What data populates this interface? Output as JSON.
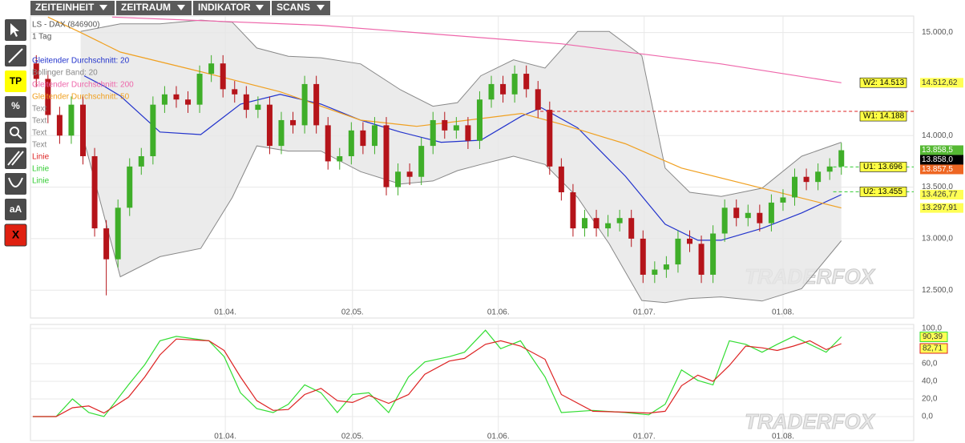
{
  "menu": [
    "ZEITEINHEIT",
    "ZEITRAUM",
    "INDIKATOR",
    "SCANS"
  ],
  "toolbar": [
    "TP",
    "%",
    "aA",
    "X"
  ],
  "watermark": "TRADERFOX",
  "chart_data": [
    {
      "type": "candlestick",
      "title": "LS - DAX (846900)",
      "subtitle": "1 Tag",
      "xlim": [
        -0.5,
        75.2
      ],
      "ylim": [
        12230,
        15160
      ],
      "yticks": [
        {
          "value": 12500,
          "label": "12.500,0"
        },
        {
          "value": 13000,
          "label": "13.000,0"
        },
        {
          "value": 13500,
          "label": "13.500,0"
        },
        {
          "value": 14000,
          "label": "14.000,0"
        },
        {
          "value": 15000,
          "label": "15.000,0"
        }
      ],
      "xticks": [
        {
          "value": 16.2,
          "label": "01.04."
        },
        {
          "value": 27.1,
          "label": "02.05."
        },
        {
          "value": 39.6,
          "label": "01.06."
        },
        {
          "value": 52.1,
          "label": "01.07."
        },
        {
          "value": 64,
          "label": "01.08."
        }
      ],
      "up_color": "#3fae29",
      "down_color": "#b5141a",
      "open": [
        14700,
        14550,
        14200,
        14000,
        14300,
        13800,
        13100,
        12800,
        13300,
        13700,
        13800,
        14300,
        14400,
        14350,
        14300,
        14600,
        14700,
        14450,
        14400,
        14250,
        14300,
        13900,
        14150,
        14100,
        14500,
        14100,
        13750,
        13800,
        14050,
        13900,
        14100,
        13500,
        13650,
        13600,
        13900,
        14150,
        14050,
        14100,
        13950,
        14350,
        14500,
        14400,
        14600,
        14450,
        14250,
        13700,
        13450,
        13100,
        13200,
        13100,
        13150,
        13200,
        13000,
        12650,
        12700,
        12750,
        13000,
        12950,
        12650,
        13050,
        13300,
        13200,
        13250,
        13150,
        13350,
        13400,
        13600,
        13550,
        13650,
        13700
      ],
      "high": [
        14780,
        14630,
        14280,
        14380,
        14380,
        13880,
        13180,
        13380,
        13780,
        13880,
        14380,
        14480,
        14480,
        14430,
        14680,
        14780,
        14780,
        14530,
        14480,
        14380,
        14380,
        14230,
        14230,
        14580,
        14580,
        14180,
        13880,
        14130,
        14130,
        14180,
        14180,
        13730,
        13730,
        13980,
        14230,
        14230,
        14180,
        14180,
        14430,
        14580,
        14580,
        14680,
        14680,
        14530,
        14330,
        13780,
        13530,
        13280,
        13280,
        13230,
        13280,
        13280,
        13080,
        12780,
        12830,
        13080,
        13080,
        13030,
        13130,
        13380,
        13380,
        13330,
        13330,
        13430,
        13480,
        13680,
        13680,
        13730,
        13780,
        13930
      ],
      "low": [
        14470,
        14120,
        13920,
        13920,
        13720,
        13020,
        12450,
        12720,
        13220,
        13620,
        13720,
        14220,
        14270,
        14220,
        14220,
        14520,
        14370,
        14320,
        14170,
        14170,
        13820,
        13820,
        14020,
        14020,
        14020,
        13670,
        13670,
        13720,
        13820,
        13820,
        13420,
        13420,
        13520,
        13520,
        13820,
        13970,
        13970,
        13870,
        13870,
        14270,
        14320,
        14320,
        14370,
        14170,
        13620,
        13370,
        13020,
        13020,
        13020,
        13020,
        13070,
        12920,
        12570,
        12570,
        12620,
        12670,
        12870,
        12570,
        12570,
        12970,
        13120,
        13120,
        13070,
        13070,
        13270,
        13320,
        13470,
        13470,
        13570,
        13620
      ],
      "close": [
        14550,
        14200,
        14000,
        14300,
        13800,
        13100,
        12800,
        13300,
        13700,
        13800,
        14300,
        14400,
        14350,
        14300,
        14600,
        14700,
        14450,
        14400,
        14250,
        14300,
        13900,
        14150,
        14100,
        14500,
        14100,
        13750,
        13800,
        14050,
        13900,
        14100,
        13500,
        13650,
        13600,
        13900,
        14150,
        14050,
        14100,
        13950,
        14350,
        14500,
        14400,
        14600,
        14450,
        14250,
        13700,
        13450,
        13100,
        13200,
        13100,
        13150,
        13200,
        13000,
        12650,
        12700,
        12750,
        13000,
        12950,
        12650,
        13050,
        13300,
        13200,
        13250,
        13150,
        13350,
        13400,
        13600,
        13550,
        13650,
        13700,
        13858
      ],
      "overlays": [
        {
          "name": "Gleitender Durchschnitt: 20",
          "color": "#2233cc",
          "x": [
            4.1,
            5.8,
            7.2,
            10.6,
            14.1,
            17.5,
            20.9,
            24.4,
            27.8,
            31.2,
            34.7,
            38.1,
            41.6,
            43.3,
            46.4,
            50.5,
            53.9,
            56.7,
            58.7,
            62.2,
            65.6,
            69
          ],
          "values": [
            14580,
            14480,
            14385,
            14035,
            14010,
            14305,
            14400,
            14305,
            14150,
            14035,
            13935,
            13955,
            14190,
            14270,
            14075,
            13605,
            13140,
            12985,
            12985,
            13100,
            13250,
            13426.77
          ]
        },
        {
          "name": "Bollinger Band: 20",
          "color": "#888888",
          "x": [
            3.8,
            7.2,
            10.6,
            14.1,
            16.8,
            18.9,
            21.6,
            24.4,
            27.8,
            31.2,
            34,
            36.1,
            38.1,
            40.9,
            43.6,
            46.4,
            49.1,
            51.9,
            53.9,
            56,
            58.7,
            62.2,
            65.6,
            69
          ],
          "upper": [
            15010,
            15085,
            15085,
            15120,
            15100,
            14850,
            14770,
            14755,
            14695,
            14445,
            14285,
            14320,
            14580,
            14735,
            14655,
            15010,
            15010,
            14775,
            13685,
            13450,
            13410,
            13490,
            13800,
            13935
          ],
          "lower": [
            14075,
            12630,
            12825,
            12905,
            13400,
            13900,
            13850,
            13850,
            13650,
            13530,
            13560,
            13660,
            13720,
            13800,
            13720,
            13400,
            12950,
            12400,
            12380,
            12420,
            12435,
            12395,
            12515,
            12980
          ]
        },
        {
          "name": "Gleitender Durchschnitt: 200",
          "color": "#ee66aa",
          "x": [
            6.5,
            24.4,
            45,
            58.7,
            69
          ],
          "values": [
            15150,
            15070,
            14890,
            14695,
            14512.62
          ]
        },
        {
          "name": "Gleitender Durchschnitt: 50",
          "color": "#f0a020",
          "x": [
            1,
            3.8,
            7.2,
            14.1,
            20.9,
            27.8,
            32.6,
            38.1,
            41.6,
            45,
            50.5,
            55.3,
            62.2,
            69
          ],
          "values": [
            15150,
            15000,
            14810,
            14620,
            14425,
            14150,
            14090,
            14165,
            14215,
            14110,
            13920,
            13685,
            13490,
            13297.91
          ]
        }
      ],
      "annotations": [
        "Text",
        "Text",
        "Text",
        "Text"
      ],
      "drawn_lines": [
        {
          "name": "Linie",
          "color": "#dd2222",
          "value": 14235,
          "x_start": 43.2
        },
        {
          "name": "Linie",
          "color": "#33cc33",
          "value": 13696,
          "x_start": 68.3
        },
        {
          "name": "Linie",
          "color": "#33cc33",
          "value": 13455,
          "x_start": 68.3
        }
      ],
      "levels": [
        {
          "value": 14513,
          "label": "W2: 14.513"
        },
        {
          "value": 14188,
          "label": "W1: 14.188"
        },
        {
          "value": 13696,
          "label": "U1: 13.696"
        },
        {
          "value": 13455,
          "label": "U2: 13.455"
        }
      ],
      "price_labels": [
        {
          "value": 14512.62,
          "label": "14.512,62",
          "color": "#ffff55",
          "text_color": "#333333"
        },
        {
          "value": 13858.5,
          "label": "13.858,5",
          "color": "#55b833",
          "text_color": "#ffffff"
        },
        {
          "value": 13858.0,
          "label": "13.858,0",
          "color": "#000000",
          "text_color": "#ffffff"
        },
        {
          "value": 13857.5,
          "label": "13.857,5",
          "color": "#ee6622",
          "text_color": "#ffffff"
        },
        {
          "value": 13426.77,
          "label": "13.426,77",
          "color": "#ffff55",
          "text_color": "#333333"
        },
        {
          "value": 13297.91,
          "label": "13.297,91",
          "color": "#ffff55",
          "text_color": "#333333"
        }
      ]
    },
    {
      "type": "line",
      "xlim": [
        -0.5,
        75.2
      ],
      "ylim": [
        -27.3,
        104.5
      ],
      "yticks": [
        {
          "value": 0,
          "label": "0,0"
        },
        {
          "value": 20,
          "label": "20,0"
        },
        {
          "value": 40,
          "label": "40,0"
        },
        {
          "value": 60,
          "label": "60,0"
        },
        {
          "value": 100,
          "label": "100,0"
        }
      ],
      "xticks": [
        {
          "value": 16.2,
          "label": "01.04."
        },
        {
          "value": 27.1,
          "label": "02.05."
        },
        {
          "value": 39.6,
          "label": "01.06."
        },
        {
          "value": 52.1,
          "label": "01.07."
        },
        {
          "value": 64,
          "label": "01.08."
        }
      ],
      "x": [
        -0.3,
        1.7,
        3.1,
        4.5,
        5.8,
        7.9,
        9.3,
        10.6,
        12,
        14.8,
        16.1,
        17.5,
        18.9,
        20.3,
        21.6,
        23,
        24.4,
        25.8,
        27.1,
        28.5,
        30.2,
        31.9,
        33.3,
        35.4,
        36.7,
        38.5,
        39.8,
        41.5,
        43.6,
        45,
        47.7,
        50.5,
        52.5,
        53.9,
        55.3,
        56.7,
        58,
        59.4,
        60.8,
        62.2,
        63.5,
        64.9,
        66.3,
        67.7,
        69
      ],
      "series": [
        {
          "color": "#33dd33",
          "values": [
            0,
            0,
            20,
            4.5,
            0,
            36,
            59,
            86,
            91,
            86,
            68,
            27,
            9,
            4.5,
            14,
            36,
            27,
            4.5,
            25,
            27,
            4.5,
            45,
            62,
            68,
            73,
            98,
            77,
            86,
            45,
            4.5,
            7,
            4.5,
            2,
            14,
            53,
            41,
            36,
            86,
            82,
            73,
            82,
            91,
            82,
            73,
            90.39
          ],
          "end_label": {
            "value": 90.39,
            "label": "90,39"
          }
        },
        {
          "color": "#dd2222",
          "values": [
            0,
            0,
            10,
            12,
            4,
            22,
            45,
            70,
            88,
            86,
            75,
            45,
            18,
            7,
            8,
            25,
            32,
            18,
            16,
            24,
            15,
            25,
            48,
            63,
            66,
            82,
            86,
            80,
            65,
            25,
            6,
            5,
            4,
            6,
            35,
            47,
            40,
            58,
            80,
            78,
            75,
            80,
            86,
            76,
            82.71
          ],
          "end_label": {
            "value": 82.71,
            "label": "82,71"
          }
        }
      ]
    }
  ]
}
